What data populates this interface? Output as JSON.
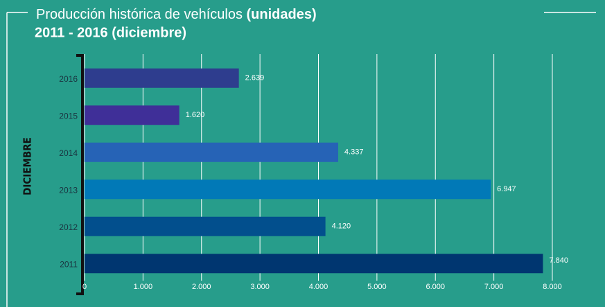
{
  "chart_data": {
    "type": "barh",
    "title": "Producción histórica de vehículos",
    "title_emphasis": "(unidades)",
    "subtitle": "2011 - 2016 (diciembre)",
    "y_label": "DICIEMBRE",
    "categories": [
      "2016",
      "2015",
      "2014",
      "2013",
      "2012",
      "2011"
    ],
    "values": [
      2639,
      1620,
      4337,
      6947,
      4120,
      7840
    ],
    "value_labels": [
      "2.639",
      "1.620",
      "4.337",
      "6.947",
      "4.120",
      "7.840"
    ],
    "colors": [
      "#2e3d8e",
      "#3f2f98",
      "#2663b6",
      "#0179b7",
      "#024f8d",
      "#003670"
    ],
    "xlim": [
      0,
      8000
    ],
    "xticks": [
      0,
      {
        "value": 1000,
        "label": "1.000"
      },
      {
        "value": 2000,
        "label": "2.000"
      },
      {
        "value": 3000,
        "label": "3.000"
      },
      {
        "value": 4000,
        "label": "4.000"
      },
      {
        "value": 5000,
        "label": "5.000"
      },
      {
        "value": 6000,
        "label": "6.000"
      },
      {
        "value": 7000,
        "label": "7.000"
      },
      {
        "value": 8000,
        "label": "8.000"
      }
    ],
    "grid": true
  }
}
